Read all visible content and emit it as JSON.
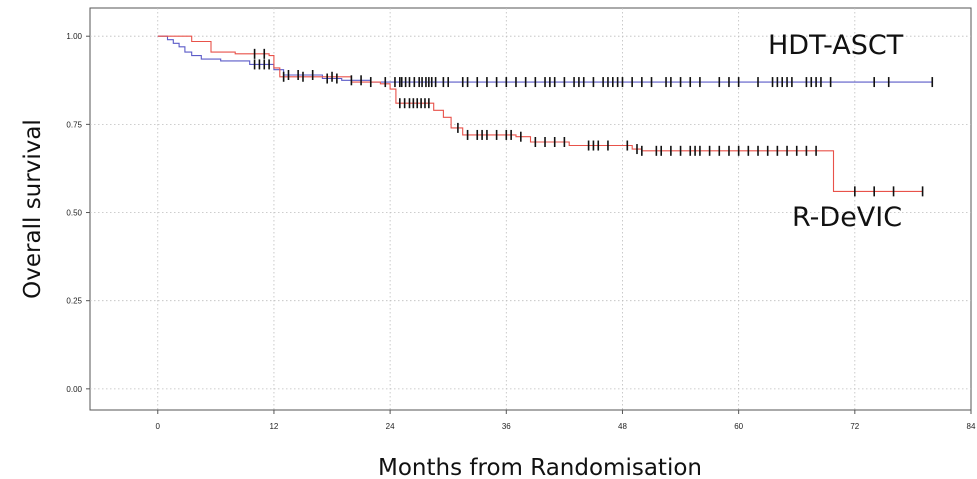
{
  "chart_data": {
    "type": "line",
    "subtype": "kaplan-meier",
    "xlabel": "Months from Randomisation",
    "ylabel": "Overall survival",
    "xlim": [
      -7,
      84
    ],
    "ylim": [
      -0.06,
      1.08
    ],
    "x_ticks": [
      0,
      12,
      24,
      36,
      48,
      60,
      72,
      84
    ],
    "y_ticks": [
      0.0,
      0.25,
      0.5,
      0.75,
      1.0
    ],
    "x_tick_labels": [
      "0",
      "12",
      "24",
      "36",
      "48",
      "60",
      "72",
      "84"
    ],
    "y_tick_labels": [
      "0.00",
      "0.25",
      "0.50",
      "0.75",
      "1.00"
    ],
    "grid": true,
    "series": [
      {
        "name": "HDT-ASCT",
        "color": "#5b5bc8",
        "steps": [
          [
            0,
            1.0
          ],
          [
            1.0,
            0.99
          ],
          [
            1.6,
            0.98
          ],
          [
            2.2,
            0.97
          ],
          [
            2.8,
            0.955
          ],
          [
            3.5,
            0.945
          ],
          [
            4.5,
            0.935
          ],
          [
            6.5,
            0.93
          ],
          [
            9.5,
            0.92
          ],
          [
            12.0,
            0.905
          ],
          [
            13.0,
            0.89
          ],
          [
            17.0,
            0.88
          ],
          [
            19.0,
            0.875
          ],
          [
            22.0,
            0.87
          ],
          [
            80,
            0.87
          ]
        ],
        "censor_times": [
          10,
          10.5,
          11,
          11.5,
          13.5,
          14.5,
          16,
          17.5,
          18.5,
          20,
          21,
          23.5,
          24.5,
          25,
          25.2,
          25.6,
          26,
          26.5,
          27,
          27.3,
          27.7,
          28,
          28.3,
          28.7,
          29.5,
          30,
          31.5,
          32,
          33,
          34,
          35,
          36,
          37,
          38,
          39,
          40,
          40.5,
          41,
          42,
          43,
          43.5,
          44,
          45,
          46,
          46.5,
          47,
          47.5,
          48,
          49,
          50,
          51,
          52.5,
          53,
          54,
          55,
          56,
          58,
          59,
          60,
          62,
          63.5,
          64,
          64.5,
          65,
          65.5,
          67,
          67.5,
          68,
          68.5,
          69.5,
          74,
          75.5,
          80
        ]
      },
      {
        "name": "R-DeVIC",
        "color": "#e8524a",
        "steps": [
          [
            0,
            1.0
          ],
          [
            3.5,
            0.985
          ],
          [
            5.5,
            0.955
          ],
          [
            8.0,
            0.95
          ],
          [
            11.5,
            0.945
          ],
          [
            12.0,
            0.91
          ],
          [
            12.6,
            0.885
          ],
          [
            20.0,
            0.87
          ],
          [
            23.0,
            0.865
          ],
          [
            24.0,
            0.85
          ],
          [
            24.6,
            0.81
          ],
          [
            28.5,
            0.79
          ],
          [
            29.5,
            0.77
          ],
          [
            30.3,
            0.74
          ],
          [
            31.5,
            0.72
          ],
          [
            37.0,
            0.715
          ],
          [
            38.5,
            0.7
          ],
          [
            42.5,
            0.69
          ],
          [
            49.0,
            0.68
          ],
          [
            50.0,
            0.675
          ],
          [
            68.5,
            0.675
          ],
          [
            69.8,
            0.56
          ],
          [
            79,
            0.56
          ]
        ],
        "censor_times": [
          10,
          11,
          13,
          15,
          18,
          22,
          25,
          25.5,
          26,
          26.4,
          26.8,
          27.2,
          27.6,
          28,
          31,
          32,
          33,
          33.5,
          34,
          35,
          36,
          36.5,
          37.5,
          39,
          40,
          41,
          42,
          44.5,
          45,
          45.5,
          46.5,
          48.5,
          49.5,
          50,
          51.5,
          52,
          53,
          54,
          55,
          55.5,
          56,
          57,
          58,
          59,
          60,
          61,
          62,
          63,
          64,
          65,
          66,
          67,
          68,
          72,
          74,
          76,
          79
        ]
      }
    ]
  }
}
